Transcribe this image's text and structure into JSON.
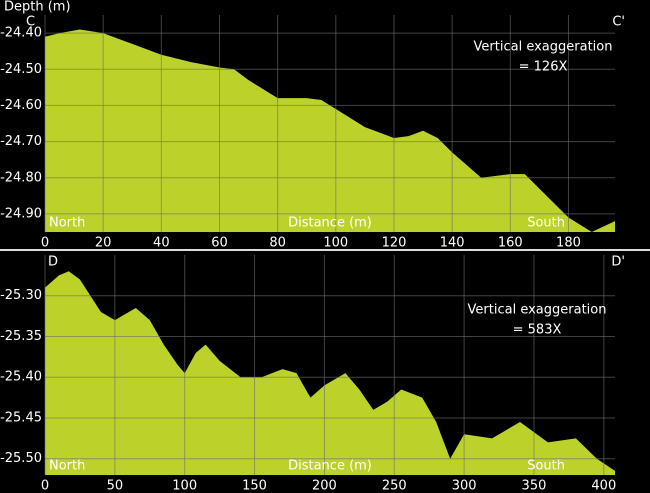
{
  "chart_data": [
    {
      "type": "area",
      "y_label": "Depth (m)",
      "x_label": "Distance (m)",
      "start_label": "C",
      "end_label": "C'",
      "left_label": "North",
      "right_label": "South",
      "annotation": [
        "Vertical exaggeration",
        "= 126X"
      ],
      "color": "#bcd22a",
      "grid": true,
      "x": [
        0,
        5,
        12,
        20,
        30,
        40,
        50,
        60,
        65,
        70,
        80,
        90,
        95,
        100,
        110,
        120,
        125,
        130,
        135,
        140,
        150,
        160,
        165,
        170,
        180,
        188,
        196
      ],
      "values": [
        -24.41,
        -24.4,
        -24.39,
        -24.4,
        -24.43,
        -24.46,
        -24.48,
        -24.495,
        -24.5,
        -24.53,
        -24.58,
        -24.58,
        -24.585,
        -24.61,
        -24.66,
        -24.69,
        -24.685,
        -24.67,
        -24.69,
        -24.73,
        -24.8,
        -24.79,
        -24.79,
        -24.83,
        -24.91,
        -24.95,
        -24.92
      ],
      "xlim": [
        0,
        196
      ],
      "ylim": [
        -24.95,
        -24.35
      ],
      "xticks": [
        0,
        20,
        40,
        60,
        80,
        100,
        120,
        140,
        160,
        180
      ],
      "yticks": [
        {
          "value": -24.4,
          "label": "-24.40"
        },
        {
          "value": -24.5,
          "label": "-24.50"
        },
        {
          "value": -24.6,
          "label": "-24.60"
        },
        {
          "value": -24.7,
          "label": "-24.70"
        },
        {
          "value": -24.8,
          "label": "-24.80"
        },
        {
          "value": -24.9,
          "label": "-24.90"
        }
      ]
    },
    {
      "type": "area",
      "x_label": "Distance (m)",
      "start_label": "D",
      "end_label": "D'",
      "left_label": "North",
      "right_label": "South",
      "annotation": [
        "Vertical exaggeration",
        "= 583X"
      ],
      "color": "#bcd22a",
      "grid": true,
      "x": [
        0,
        10,
        17,
        25,
        40,
        50,
        60,
        65,
        75,
        85,
        95,
        100,
        108,
        115,
        125,
        140,
        155,
        170,
        180,
        190,
        200,
        215,
        225,
        235,
        245,
        255,
        270,
        280,
        290,
        300,
        320,
        340,
        360,
        380,
        395,
        408
      ],
      "values": [
        -25.29,
        -25.275,
        -25.27,
        -25.28,
        -25.32,
        -25.33,
        -25.32,
        -25.315,
        -25.33,
        -25.36,
        -25.385,
        -25.395,
        -25.37,
        -25.36,
        -25.38,
        -25.4,
        -25.4,
        -25.39,
        -25.395,
        -25.425,
        -25.41,
        -25.395,
        -25.415,
        -25.44,
        -25.43,
        -25.415,
        -25.425,
        -25.455,
        -25.5,
        -25.47,
        -25.475,
        -25.455,
        -25.48,
        -25.475,
        -25.5,
        -25.515
      ],
      "xlim": [
        0,
        408
      ],
      "ylim": [
        -25.52,
        -25.25
      ],
      "xticks": [
        0,
        50,
        100,
        150,
        200,
        250,
        300,
        350,
        400
      ],
      "yticks": [
        {
          "value": -25.3,
          "label": "-25.30"
        },
        {
          "value": -25.35,
          "label": "-25.35"
        },
        {
          "value": -25.4,
          "label": "-25.40"
        },
        {
          "value": -25.45,
          "label": "-25.45"
        },
        {
          "value": -25.5,
          "label": "-25.50"
        }
      ]
    }
  ]
}
